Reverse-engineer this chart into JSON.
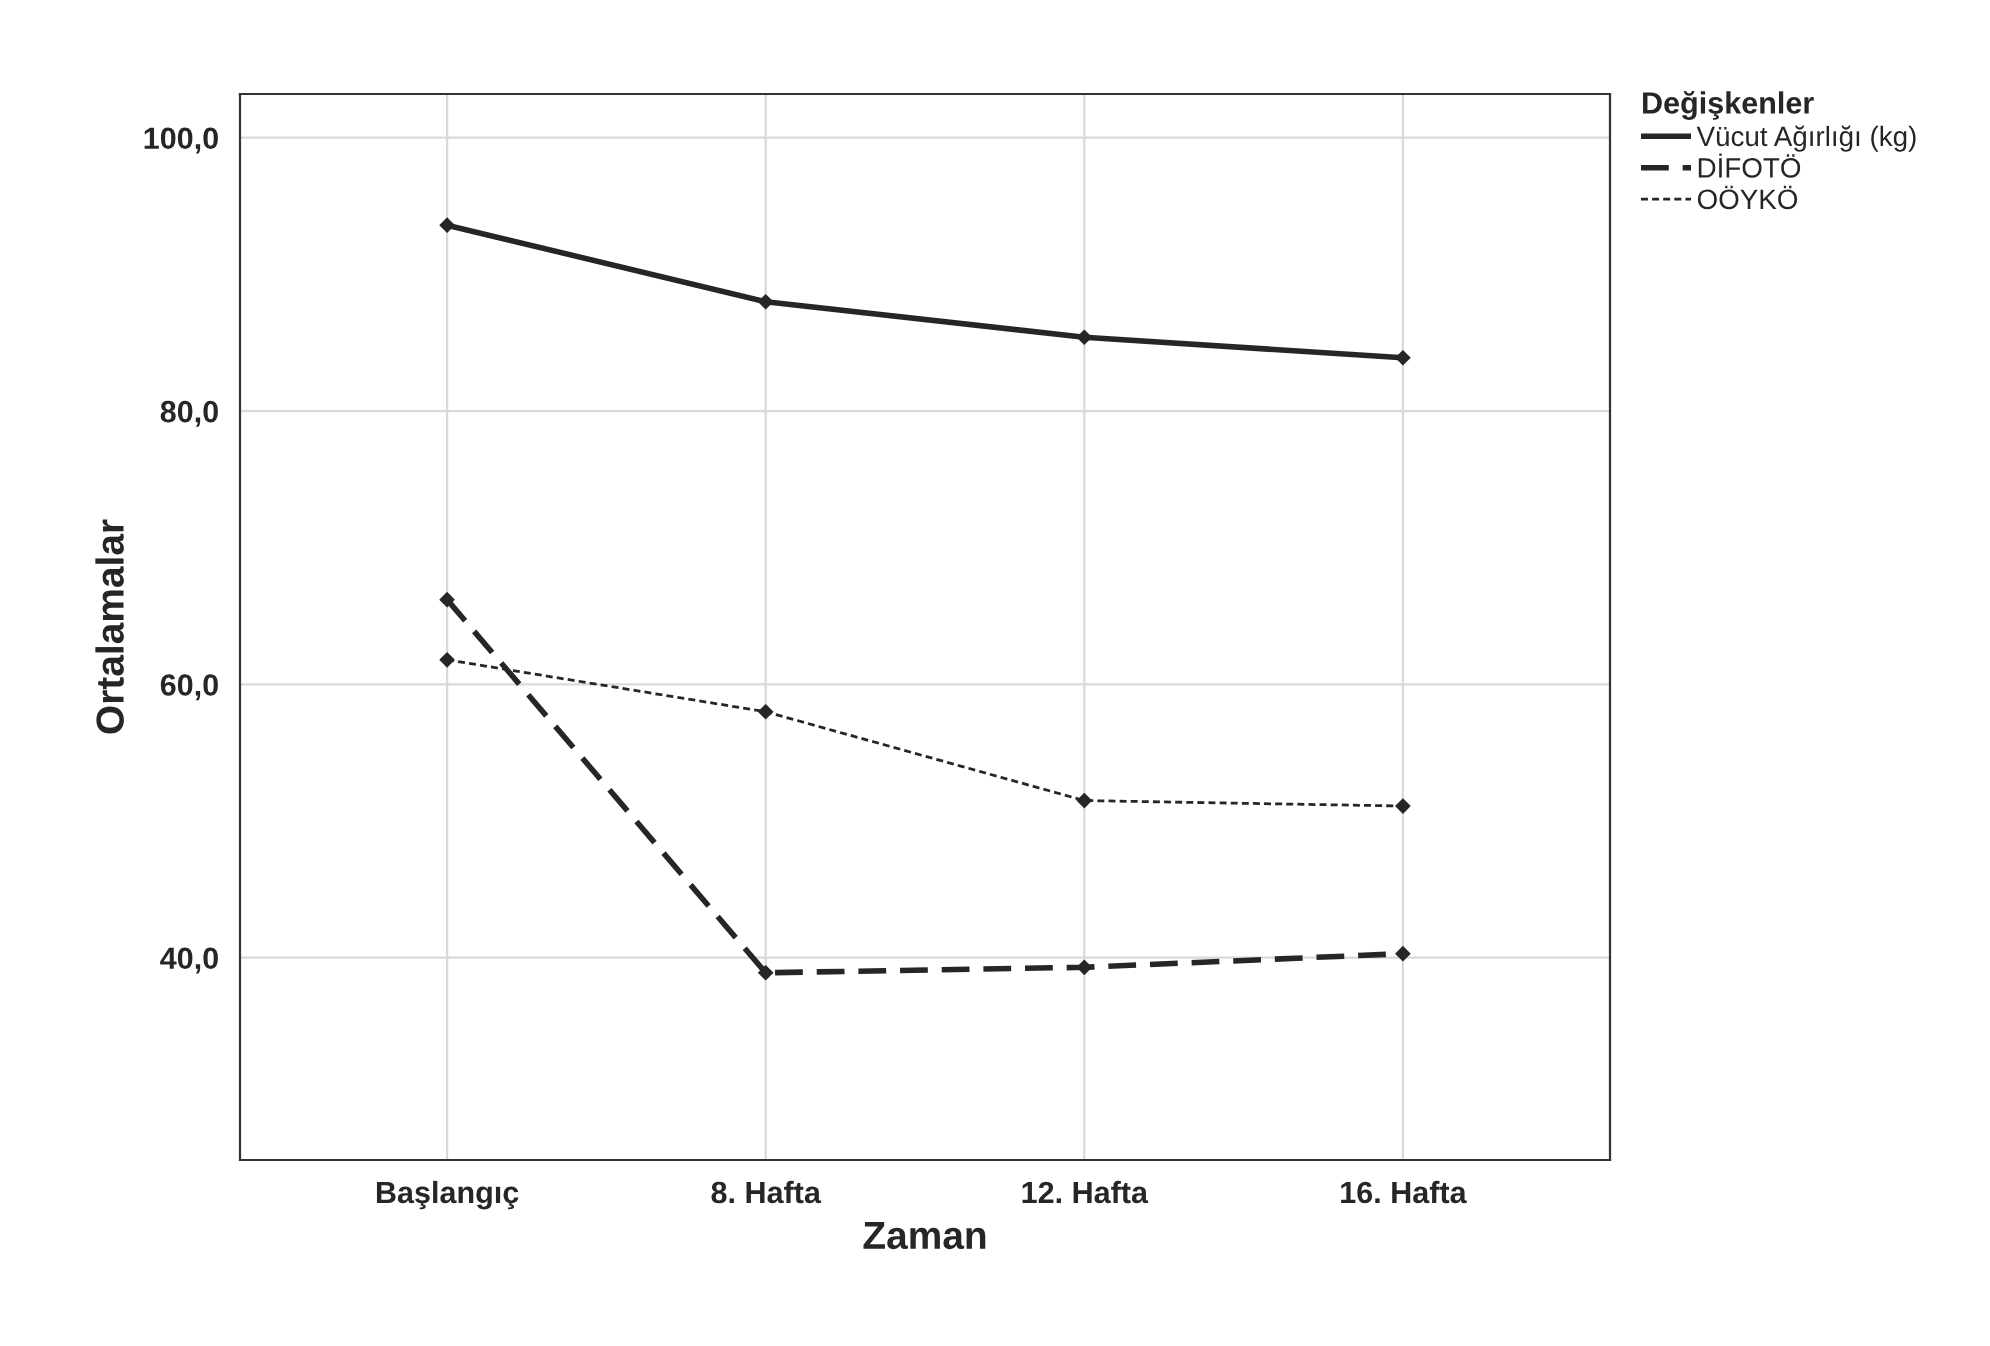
{
  "chart_data": {
    "type": "line",
    "xlabel": "Zaman",
    "ylabel": "Ortalamalar",
    "legend_title": "Değişkenler",
    "categories": [
      "Başlangıç",
      "8. Hafta",
      "12. Hafta",
      "16. Hafta"
    ],
    "series": [
      {
        "name": "Vücut Ağırlığı (kg)",
        "color": "#262626",
        "values": [
          93.6,
          88.0,
          85.4,
          83.9
        ],
        "line_style": "solid"
      },
      {
        "name": "DİFOTÖ",
        "color": "#262626",
        "values": [
          66.2,
          38.9,
          39.3,
          40.3
        ],
        "line_style": "dashed"
      },
      {
        "name": "OÖYKÖ",
        "color": "#262626",
        "values": [
          61.8,
          58.0,
          51.5,
          51.1
        ],
        "line_style": "dotted"
      }
    ],
    "ylim": [
      25.2,
      103.2
    ],
    "yticks": [
      {
        "value": 40,
        "label": "40,0"
      },
      {
        "value": 60,
        "label": "60,0"
      },
      {
        "value": 80,
        "label": "80,0"
      },
      {
        "value": 100,
        "label": "100,0"
      }
    ],
    "grid": true,
    "legend": "top right",
    "marker": "diamond"
  }
}
